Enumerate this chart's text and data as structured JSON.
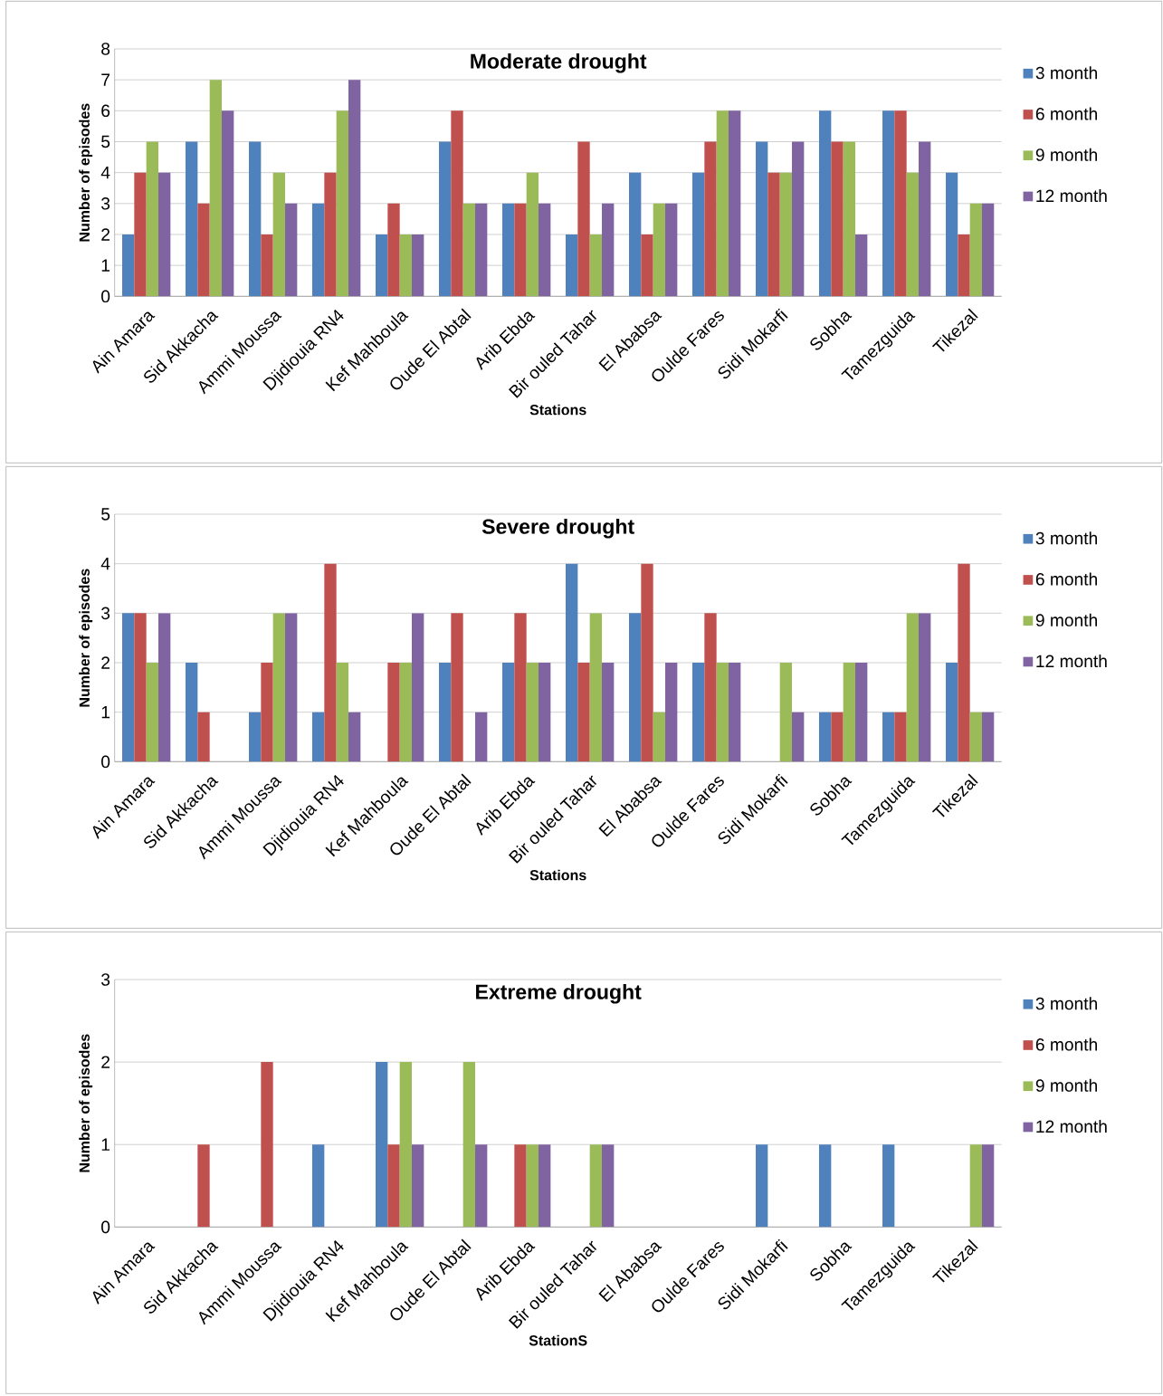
{
  "chart_data": [
    {
      "type": "bar",
      "title": "Moderate drought",
      "xlabel": "Stations",
      "ylabel": "Number of episodes",
      "categories": [
        "Ain Amara",
        "Sid Akkacha",
        "Ammi Moussa",
        "Djidiouia RN4",
        "Kef Mahboula",
        "Oude El Abtal",
        "Arib Ebda",
        "Bir ouled Tahar",
        "El  Ababsa",
        "Oulde Fares",
        "Sidi Mokarfi",
        "Sobha",
        "Tamezguida",
        "Tikezal"
      ],
      "ylim": [
        0,
        8
      ],
      "yticks": [
        0,
        1,
        2,
        3,
        4,
        5,
        6,
        7,
        8
      ],
      "grid": "y",
      "legend": "right",
      "series": [
        {
          "name": "3 month",
          "color": "#4f81bd",
          "values": [
            2,
            5,
            5,
            3,
            2,
            5,
            3,
            2,
            4,
            4,
            5,
            6,
            6,
            4
          ]
        },
        {
          "name": "6 month",
          "color": "#c0504d",
          "values": [
            4,
            3,
            2,
            4,
            3,
            6,
            3,
            5,
            2,
            5,
            4,
            5,
            6,
            2
          ]
        },
        {
          "name": "9 month",
          "color": "#9bbb59",
          "values": [
            5,
            7,
            4,
            6,
            2,
            3,
            4,
            2,
            3,
            6,
            4,
            5,
            4,
            3
          ]
        },
        {
          "name": "12 month",
          "color": "#8064a2",
          "values": [
            4,
            6,
            3,
            7,
            2,
            3,
            3,
            3,
            3,
            6,
            5,
            2,
            5,
            3
          ]
        }
      ]
    },
    {
      "type": "bar",
      "title": "Severe drought",
      "xlabel": "Stations",
      "ylabel": "Number of episodes",
      "categories": [
        "Ain Amara",
        "Sid Akkacha",
        "Ammi Moussa",
        "Djidiouia RN4",
        "Kef Mahboula",
        "Oude El Abtal",
        "Arib Ebda",
        "Bir ouled Tahar",
        "El  Ababsa",
        "Oulde Fares",
        "Sidi Mokarfi",
        "Sobha",
        "Tamezguida",
        "Tikezal"
      ],
      "ylim": [
        0,
        5
      ],
      "yticks": [
        0,
        1,
        2,
        3,
        4,
        5
      ],
      "grid": "y",
      "legend": "right",
      "series": [
        {
          "name": "3 month",
          "color": "#4f81bd",
          "values": [
            3,
            2,
            1,
            1,
            0,
            2,
            2,
            4,
            3,
            2,
            0,
            1,
            1,
            2
          ]
        },
        {
          "name": "6 month",
          "color": "#c0504d",
          "values": [
            3,
            1,
            2,
            4,
            2,
            3,
            3,
            2,
            4,
            3,
            0,
            1,
            1,
            4
          ]
        },
        {
          "name": "9 month",
          "color": "#9bbb59",
          "values": [
            2,
            0,
            3,
            2,
            2,
            0,
            2,
            3,
            1,
            2,
            2,
            2,
            3,
            1
          ]
        },
        {
          "name": "12 month",
          "color": "#8064a2",
          "values": [
            3,
            0,
            3,
            1,
            3,
            1,
            2,
            2,
            2,
            2,
            1,
            2,
            3,
            1
          ]
        }
      ]
    },
    {
      "type": "bar",
      "title": "Extreme drought",
      "xlabel": "StationS",
      "ylabel": "Number of episodes",
      "categories": [
        "Ain Amara",
        "Sid Akkacha",
        "Ammi Moussa",
        "Djidiouia RN4",
        "Kef Mahboula",
        "Oude El Abtal",
        "Arib Ebda",
        "Bir ouled Tahar",
        "El  Ababsa",
        "Oulde Fares",
        "Sidi Mokarfi",
        "Sobha",
        "Tamezguida",
        "Tikezal"
      ],
      "ylim": [
        0,
        3
      ],
      "yticks": [
        0,
        1,
        2,
        3
      ],
      "grid": "y",
      "legend": "right",
      "series": [
        {
          "name": "3 month",
          "color": "#4f81bd",
          "values": [
            0,
            0,
            0,
            1,
            2,
            0,
            0,
            0,
            0,
            0,
            1,
            1,
            1,
            0
          ]
        },
        {
          "name": "6 month",
          "color": "#c0504d",
          "values": [
            0,
            1,
            2,
            0,
            1,
            0,
            1,
            0,
            0,
            0,
            0,
            0,
            0,
            0
          ]
        },
        {
          "name": "9 month",
          "color": "#9bbb59",
          "values": [
            0,
            0,
            0,
            0,
            2,
            2,
            1,
            1,
            0,
            0,
            0,
            0,
            0,
            1
          ]
        },
        {
          "name": "12 month",
          "color": "#8064a2",
          "values": [
            0,
            0,
            0,
            0,
            1,
            1,
            1,
            1,
            0,
            0,
            0,
            0,
            0,
            1
          ]
        }
      ]
    }
  ]
}
